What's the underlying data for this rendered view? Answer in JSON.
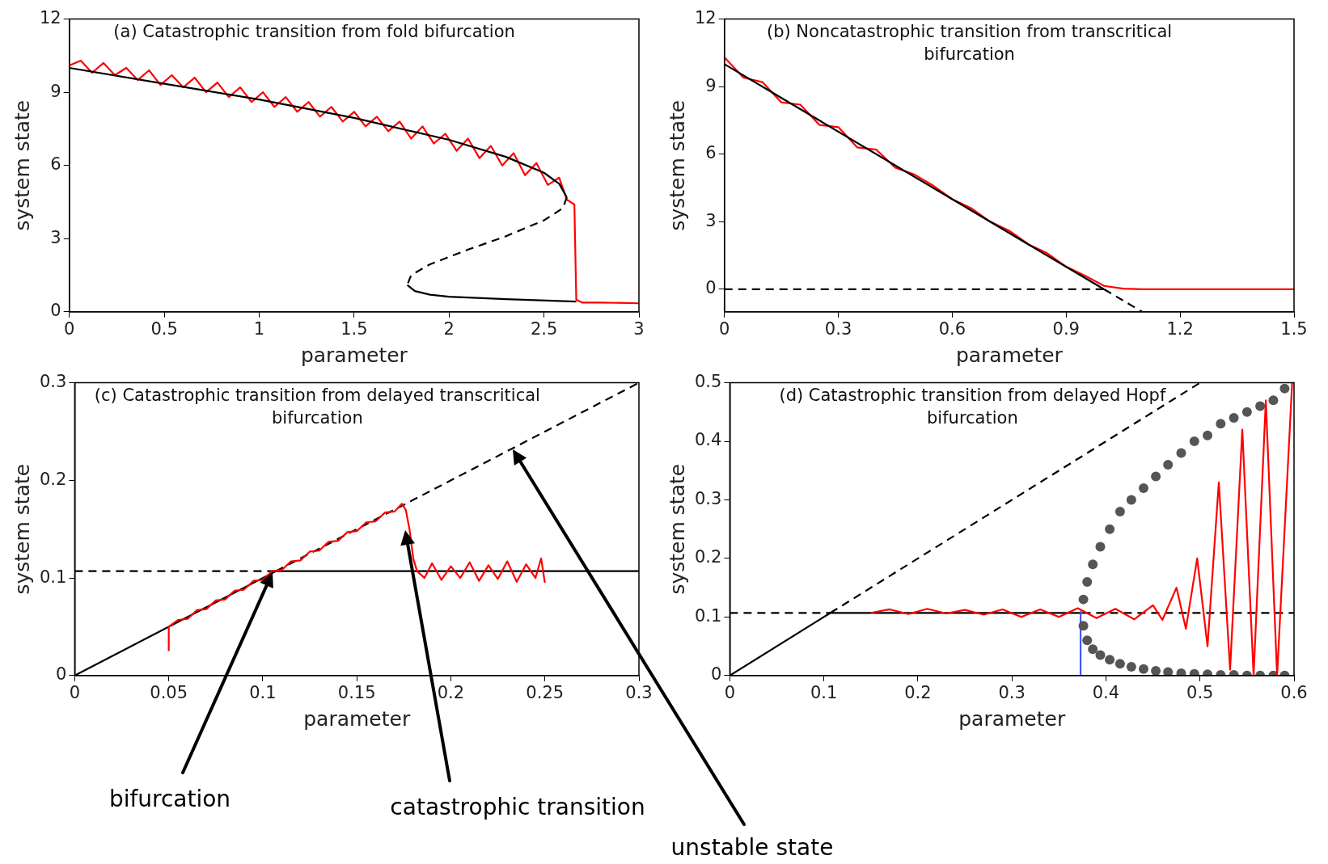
{
  "chart_data": [
    {
      "type": "line",
      "title": "(a) Catastrophic transition from fold bifurcation",
      "xlabel": "parameter",
      "ylabel": "system state",
      "xlim": [
        0,
        3
      ],
      "ylim": [
        0,
        12
      ],
      "xticks": [
        0,
        0.5,
        1,
        1.5,
        2,
        2.5,
        3
      ],
      "yticks": [
        0,
        3,
        6,
        9,
        12
      ],
      "grid": false,
      "legend": false,
      "marker": "none",
      "series": [
        {
          "color": "#ff0000",
          "x": [
            0,
            0.06,
            0.12,
            0.18,
            0.24,
            0.3,
            0.36,
            0.42,
            0.48,
            0.54,
            0.6,
            0.66,
            0.72,
            0.78,
            0.84,
            0.9,
            0.96,
            1.02,
            1.08,
            1.14,
            1.2,
            1.26,
            1.32,
            1.38,
            1.44,
            1.5,
            1.56,
            1.62,
            1.68,
            1.74,
            1.8,
            1.86,
            1.92,
            1.98,
            2.04,
            2.1,
            2.16,
            2.22,
            2.28,
            2.34,
            2.4,
            2.46,
            2.52,
            2.58,
            2.62,
            2.66,
            2.67,
            2.7,
            2.8,
            3
          ],
          "values": [
            10.1,
            10.3,
            9.8,
            10.2,
            9.7,
            10.0,
            9.5,
            9.9,
            9.3,
            9.7,
            9.2,
            9.6,
            9.0,
            9.4,
            8.8,
            9.2,
            8.6,
            9.0,
            8.4,
            8.8,
            8.2,
            8.6,
            8.0,
            8.4,
            7.8,
            8.2,
            7.6,
            8.0,
            7.4,
            7.8,
            7.1,
            7.6,
            6.9,
            7.3,
            6.6,
            7.1,
            6.3,
            6.8,
            6.0,
            6.5,
            5.6,
            6.1,
            5.2,
            5.5,
            4.6,
            4.4,
            0.5,
            0.38,
            0.38,
            0.35
          ]
        },
        {
          "color": "#000000",
          "line_style": "solid",
          "x": [
            0,
            0.5,
            1,
            1.5,
            2,
            2.3,
            2.5,
            2.58,
            2.62
          ],
          "values": [
            10,
            9.35,
            8.7,
            7.95,
            7.05,
            6.35,
            5.7,
            5.25,
            4.7
          ]
        },
        {
          "color": "#000000",
          "line_style": "dashed",
          "x": [
            2.62,
            2.6,
            2.5,
            2.3,
            2.1,
            1.9,
            1.8,
            1.78
          ],
          "values": [
            4.7,
            4.25,
            3.75,
            3.1,
            2.55,
            1.95,
            1.5,
            1.1
          ]
        },
        {
          "color": "#000000",
          "line_style": "solid",
          "x": [
            1.78,
            1.82,
            1.9,
            2,
            2.3,
            2.67
          ],
          "values": [
            1.1,
            0.85,
            0.7,
            0.62,
            0.52,
            0.42
          ]
        }
      ]
    },
    {
      "type": "line",
      "title": "(b) Noncatastrophic transition from transcritical bifurcation",
      "xlabel": "parameter",
      "ylabel": "system state",
      "xlim": [
        0,
        1.5
      ],
      "ylim": [
        -1,
        12
      ],
      "xticks": [
        0,
        0.3,
        0.6,
        0.9,
        1.2,
        1.5
      ],
      "yticks": [
        0,
        3,
        6,
        9,
        12
      ],
      "grid": false,
      "legend": false,
      "marker": "none",
      "series": [
        {
          "color": "#000000",
          "line_style": "dashed",
          "x": [
            0,
            1
          ],
          "values": [
            0,
            0
          ]
        },
        {
          "color": "#000000",
          "line_style": "dashed",
          "x": [
            1,
            1.1
          ],
          "values": [
            0,
            -1
          ]
        },
        {
          "color": "#ff0000",
          "x": [
            0,
            0.05,
            0.1,
            0.15,
            0.2,
            0.25,
            0.3,
            0.35,
            0.4,
            0.45,
            0.5,
            0.55,
            0.6,
            0.65,
            0.7,
            0.75,
            0.8,
            0.85,
            0.9,
            0.95,
            1.0,
            1.05,
            1.1,
            1.5
          ],
          "values": [
            10.3,
            9.4,
            9.2,
            8.3,
            8.2,
            7.3,
            7.2,
            6.3,
            6.2,
            5.4,
            5.1,
            4.6,
            4.0,
            3.6,
            3.0,
            2.6,
            2.0,
            1.6,
            1.0,
            0.6,
            0.15,
            0.03,
            0,
            0
          ]
        },
        {
          "color": "#000000",
          "line_style": "solid",
          "x": [
            0,
            1
          ],
          "values": [
            10,
            0
          ]
        }
      ]
    },
    {
      "type": "line",
      "title": "(c) Catastrophic transition from delayed transcritical bifurcation",
      "xlabel": "parameter",
      "ylabel": "system state",
      "xlim": [
        0,
        0.3
      ],
      "ylim": [
        0,
        0.3
      ],
      "xticks": [
        0,
        0.05,
        0.1,
        0.15,
        0.2,
        0.25,
        0.3
      ],
      "yticks": [
        0,
        0.1,
        0.2,
        0.3
      ],
      "grid": false,
      "legend": false,
      "marker": "none",
      "annotations": [
        "bifurcation",
        "catastrophic transition",
        "unstable state"
      ],
      "series": [
        {
          "color": "#000000",
          "line_style": "solid",
          "x": [
            0,
            0.107,
            0.3
          ],
          "values": [
            0,
            0.107,
            0.107
          ]
        },
        {
          "color": "#000000",
          "line_style": "dashed",
          "x": [
            0,
            0.107
          ],
          "values": [
            0.107,
            0.107
          ]
        },
        {
          "color": "#000000",
          "line_style": "dashed",
          "x": [
            0.107,
            0.3
          ],
          "values": [
            0.107,
            0.3
          ]
        },
        {
          "color": "#ff0000",
          "x": [
            0.05,
            0.05,
            0.055,
            0.06,
            0.065,
            0.07,
            0.075,
            0.08,
            0.085,
            0.09,
            0.095,
            0.1,
            0.105,
            0.11,
            0.115,
            0.12,
            0.125,
            0.13,
            0.135,
            0.14,
            0.145,
            0.15,
            0.155,
            0.16,
            0.165,
            0.17,
            0.174,
            0.176,
            0.178,
            0.18,
            0.182,
            0.186,
            0.19,
            0.195,
            0.2,
            0.205,
            0.21,
            0.215,
            0.22,
            0.225,
            0.23,
            0.235,
            0.24,
            0.245,
            0.248,
            0.25
          ],
          "values": [
            0.025,
            0.05,
            0.057,
            0.058,
            0.067,
            0.068,
            0.077,
            0.078,
            0.087,
            0.088,
            0.097,
            0.098,
            0.107,
            0.108,
            0.117,
            0.118,
            0.127,
            0.128,
            0.137,
            0.138,
            0.147,
            0.148,
            0.157,
            0.158,
            0.167,
            0.168,
            0.176,
            0.17,
            0.15,
            0.12,
            0.107,
            0.1,
            0.115,
            0.098,
            0.112,
            0.1,
            0.116,
            0.097,
            0.113,
            0.099,
            0.117,
            0.096,
            0.114,
            0.1,
            0.12,
            0.095
          ]
        }
      ]
    },
    {
      "type": "line",
      "title": "(d) Catastrophic transition from delayed Hopf bifurcation",
      "xlabel": "parameter",
      "ylabel": "system state",
      "xlim": [
        0,
        0.6
      ],
      "ylim": [
        0,
        0.5
      ],
      "xticks": [
        0,
        0.1,
        0.2,
        0.3,
        0.4,
        0.5,
        0.6
      ],
      "yticks": [
        0,
        0.1,
        0.2,
        0.3,
        0.4,
        0.5
      ],
      "grid": false,
      "legend": false,
      "marker": "none",
      "series": [
        {
          "color": "#000000",
          "line_style": "solid",
          "x": [
            0,
            0.107,
            0.375
          ],
          "values": [
            0,
            0.107,
            0.107
          ]
        },
        {
          "color": "#000000",
          "line_style": "dashed",
          "x": [
            0,
            0.107
          ],
          "values": [
            0.107,
            0.107
          ]
        },
        {
          "color": "#000000",
          "line_style": "dashed",
          "x": [
            0.375,
            0.6
          ],
          "values": [
            0.107,
            0.107
          ]
        },
        {
          "color": "#000000",
          "line_style": "dashed",
          "x": [
            0.107,
            0.5
          ],
          "values": [
            0.107,
            0.5
          ]
        },
        {
          "color": "#4455ff",
          "line_style": "solid",
          "x": [
            0.373,
            0.373
          ],
          "values": [
            0,
            0.11
          ]
        },
        {
          "type": "scatter",
          "marker": "circle",
          "color": "#555555",
          "x": [
            0.376,
            0.38,
            0.386,
            0.394,
            0.404,
            0.415,
            0.427,
            0.44,
            0.453,
            0.466,
            0.48,
            0.494,
            0.508,
            0.522,
            0.536,
            0.55,
            0.564,
            0.578,
            0.59
          ],
          "values": [
            0.13,
            0.16,
            0.19,
            0.22,
            0.25,
            0.28,
            0.3,
            0.32,
            0.34,
            0.36,
            0.38,
            0.4,
            0.41,
            0.43,
            0.44,
            0.45,
            0.46,
            0.47,
            0.49
          ]
        },
        {
          "type": "scatter",
          "marker": "circle",
          "color": "#555555",
          "x": [
            0.376,
            0.38,
            0.386,
            0.394,
            0.404,
            0.415,
            0.427,
            0.44,
            0.453,
            0.466,
            0.48,
            0.494,
            0.508,
            0.522,
            0.536,
            0.55,
            0.564,
            0.578,
            0.59
          ],
          "values": [
            0.085,
            0.06,
            0.045,
            0.035,
            0.027,
            0.02,
            0.015,
            0.011,
            0.008,
            0.006,
            0.004,
            0.003,
            0.002,
            0.001,
            0.001,
            0,
            0,
            0,
            0
          ]
        },
        {
          "color": "#ff0000",
          "x": [
            0.15,
            0.17,
            0.19,
            0.21,
            0.23,
            0.25,
            0.27,
            0.29,
            0.31,
            0.33,
            0.35,
            0.37,
            0.39,
            0.41,
            0.43,
            0.45,
            0.46,
            0.475,
            0.485,
            0.497,
            0.508,
            0.52,
            0.532,
            0.545,
            0.557,
            0.57,
            0.582,
            0.598
          ],
          "values": [
            0.107,
            0.113,
            0.105,
            0.114,
            0.106,
            0.112,
            0.104,
            0.113,
            0.1,
            0.113,
            0.1,
            0.115,
            0.098,
            0.114,
            0.096,
            0.12,
            0.095,
            0.15,
            0.08,
            0.2,
            0.05,
            0.33,
            0.01,
            0.42,
            0,
            0.47,
            0,
            0.5
          ]
        }
      ]
    }
  ]
}
